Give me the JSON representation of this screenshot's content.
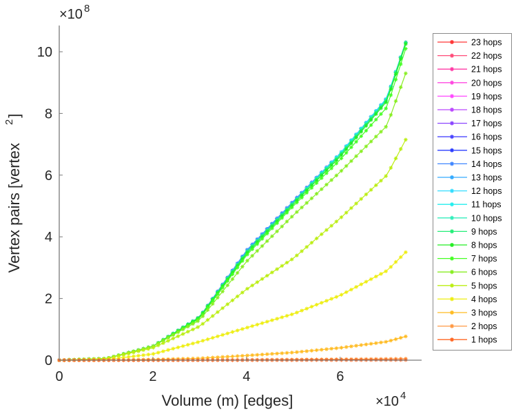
{
  "chart_data": {
    "type": "line",
    "title": "",
    "xlabel": "Volume (m) [edges]",
    "ylabel_main": "Vertex pairs [vertex",
    "ylabel_sup": "2",
    "ylabel_end": "]",
    "x_multiplier": {
      "base": "×10",
      "exp": "4"
    },
    "y_multiplier": {
      "base": "×10",
      "exp": "8"
    },
    "xlim": [
      0,
      7.74
    ],
    "ylim": [
      0,
      10.85
    ],
    "xticks": [
      0,
      2,
      4,
      6
    ],
    "xtick_labels": [
      "0",
      "2",
      "4",
      "6"
    ],
    "yticks": [
      0,
      2,
      4,
      6,
      8,
      10
    ],
    "ytick_labels": [
      "0",
      "2",
      "4",
      "6",
      "8",
      "10"
    ],
    "grid": false,
    "legend_position": "outside-right",
    "x": [
      0,
      1,
      2,
      3,
      4,
      5,
      6,
      7,
      7.4
    ],
    "series": [
      {
        "name": "23 hops",
        "color": "#ff3535",
        "values": [
          0,
          0.05,
          0.45,
          1.4,
          3.55,
          5.15,
          6.7,
          8.5,
          10.3
        ]
      },
      {
        "name": "22 hops",
        "color": "#ff4a78",
        "values": [
          0,
          0.05,
          0.45,
          1.4,
          3.55,
          5.15,
          6.7,
          8.5,
          10.3
        ]
      },
      {
        "name": "21 hops",
        "color": "#ff3aa5",
        "values": [
          0,
          0.05,
          0.45,
          1.4,
          3.55,
          5.15,
          6.7,
          8.5,
          10.3
        ]
      },
      {
        "name": "20 hops",
        "color": "#ff48e0",
        "values": [
          0,
          0.05,
          0.45,
          1.4,
          3.55,
          5.15,
          6.7,
          8.5,
          10.3
        ]
      },
      {
        "name": "19 hops",
        "color": "#ff48ff",
        "values": [
          0,
          0.05,
          0.45,
          1.4,
          3.55,
          5.15,
          6.7,
          8.5,
          10.3
        ]
      },
      {
        "name": "18 hops",
        "color": "#bb48ff",
        "values": [
          0,
          0.05,
          0.45,
          1.4,
          3.55,
          5.15,
          6.7,
          8.5,
          10.3
        ]
      },
      {
        "name": "17 hops",
        "color": "#8a44ff",
        "values": [
          0,
          0.05,
          0.45,
          1.4,
          3.55,
          5.15,
          6.7,
          8.5,
          10.3
        ]
      },
      {
        "name": "16 hops",
        "color": "#4a44ff",
        "values": [
          0,
          0.05,
          0.45,
          1.4,
          3.55,
          5.15,
          6.7,
          8.5,
          10.3
        ]
      },
      {
        "name": "15 hops",
        "color": "#2a3cff",
        "values": [
          0,
          0.05,
          0.45,
          1.4,
          3.55,
          5.15,
          6.7,
          8.5,
          10.3
        ]
      },
      {
        "name": "14 hops",
        "color": "#3f86ff",
        "values": [
          0,
          0.05,
          0.45,
          1.4,
          3.55,
          5.15,
          6.7,
          8.5,
          10.3
        ]
      },
      {
        "name": "13 hops",
        "color": "#33aaff",
        "values": [
          0,
          0.05,
          0.45,
          1.4,
          3.55,
          5.15,
          6.7,
          8.5,
          10.3
        ]
      },
      {
        "name": "12 hops",
        "color": "#33ddff",
        "values": [
          0,
          0.05,
          0.45,
          1.4,
          3.5,
          5.1,
          6.7,
          8.5,
          10.3
        ]
      },
      {
        "name": "11 hops",
        "color": "#22eeee",
        "values": [
          0,
          0.05,
          0.45,
          1.4,
          3.5,
          5.1,
          6.7,
          8.5,
          10.3
        ]
      },
      {
        "name": "10 hops",
        "color": "#33eebb",
        "values": [
          0,
          0.05,
          0.45,
          1.4,
          3.5,
          5.1,
          6.65,
          8.45,
          10.3
        ]
      },
      {
        "name": "9 hops",
        "color": "#22ee77",
        "values": [
          0,
          0.05,
          0.45,
          1.4,
          3.5,
          5.1,
          6.65,
          8.45,
          10.3
        ]
      },
      {
        "name": "8 hops",
        "color": "#22ee22",
        "values": [
          0,
          0.05,
          0.45,
          1.38,
          3.45,
          5.05,
          6.6,
          8.4,
          10.25
        ]
      },
      {
        "name": "7 hops",
        "color": "#44ff22",
        "values": [
          0,
          0.05,
          0.45,
          1.35,
          3.4,
          5.0,
          6.5,
          8.2,
          10.1
        ]
      },
      {
        "name": "6 hops",
        "color": "#88ee22",
        "values": [
          0,
          0.05,
          0.45,
          1.3,
          3.2,
          4.7,
          6.1,
          7.6,
          9.3
        ]
      },
      {
        "name": "5 hops",
        "color": "#bbee11",
        "values": [
          0,
          0.05,
          0.4,
          1.1,
          2.3,
          3.3,
          4.6,
          6.0,
          7.15
        ]
      },
      {
        "name": "4 hops",
        "color": "#eeee11",
        "values": [
          0,
          0.02,
          0.2,
          0.6,
          1.05,
          1.5,
          2.1,
          2.9,
          3.5
        ]
      },
      {
        "name": "3 hops",
        "color": "#ffbb22",
        "values": [
          0,
          0,
          0.02,
          0.06,
          0.15,
          0.25,
          0.4,
          0.6,
          0.77
        ]
      },
      {
        "name": "2 hops",
        "color": "#ff9944",
        "values": [
          0,
          0,
          0,
          0.005,
          0.01,
          0.02,
          0.03,
          0.04,
          0.05
        ]
      },
      {
        "name": "1 hops",
        "color": "#ff6622",
        "values": [
          0,
          0,
          0,
          0,
          0.003,
          0.005,
          0.007,
          0.009,
          0.01
        ]
      }
    ]
  }
}
